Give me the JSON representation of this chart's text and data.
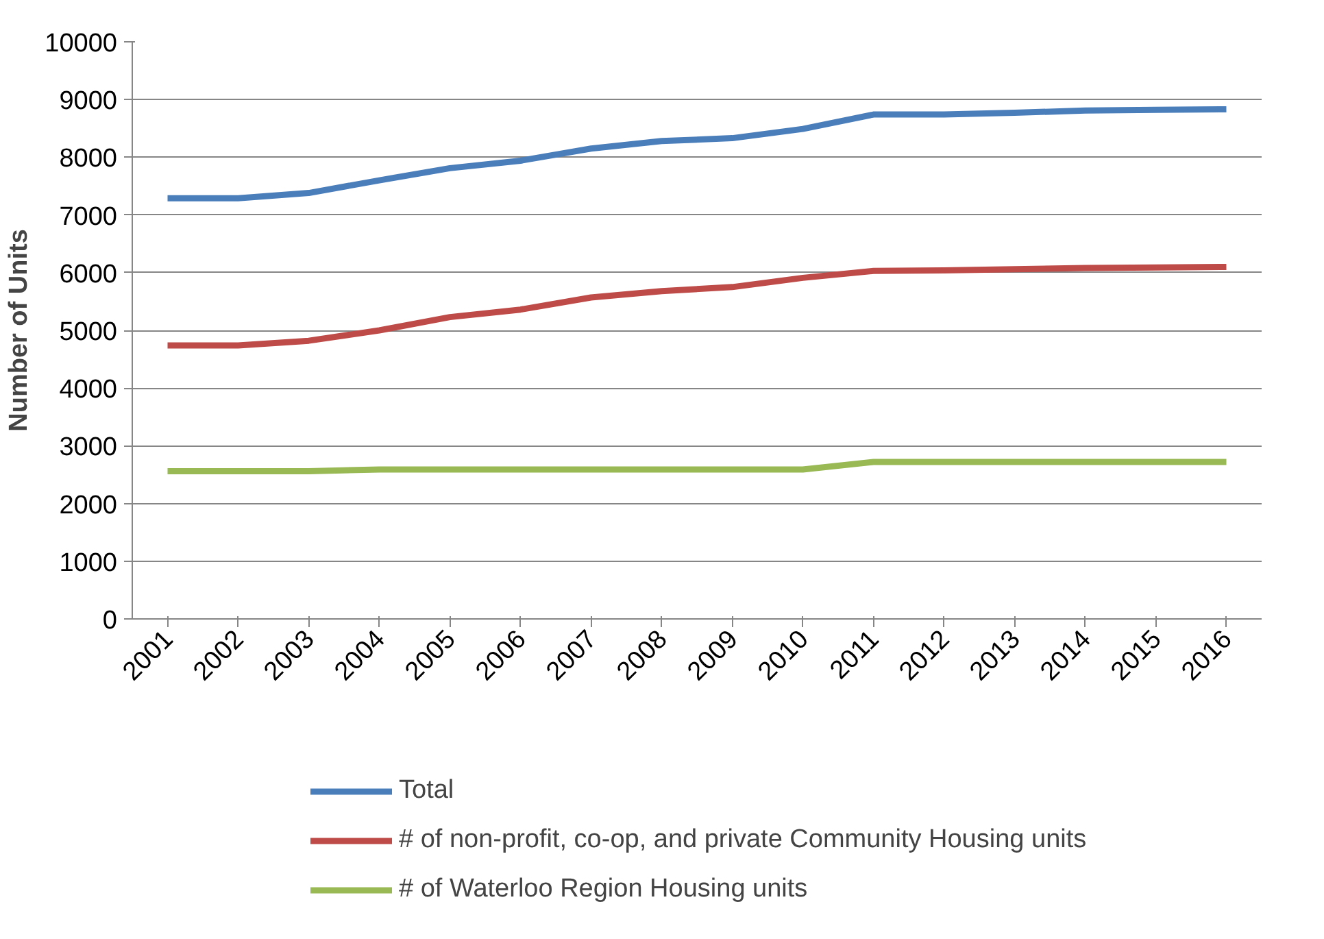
{
  "chart_data": {
    "type": "line",
    "ylabel": "Number of Units",
    "categories": [
      "2001",
      "2002",
      "2003",
      "2004",
      "2005",
      "2006",
      "2007",
      "2008",
      "2009",
      "2010",
      "2011",
      "2012",
      "2013",
      "2014",
      "2015",
      "2016"
    ],
    "series": [
      {
        "name": "Total",
        "color": "#4a7ebb",
        "values": [
          7290,
          7290,
          7380,
          7600,
          7810,
          7940,
          8150,
          8280,
          8330,
          8490,
          8740,
          8740,
          8770,
          8810,
          8820,
          8830
        ]
      },
      {
        "name": "# of non-profit, co-op, and private Community Housing units",
        "color": "#be4b48",
        "values": [
          4740,
          4740,
          4820,
          5000,
          5230,
          5360,
          5570,
          5680,
          5750,
          5910,
          6030,
          6040,
          6060,
          6080,
          6090,
          6100
        ]
      },
      {
        "name": "# of Waterloo Region Housing units",
        "color": "#98b954",
        "values": [
          2560,
          2560,
          2560,
          2590,
          2590,
          2590,
          2590,
          2590,
          2590,
          2590,
          2720,
          2720,
          2720,
          2720,
          2720,
          2720
        ]
      }
    ],
    "ylim": [
      0,
      10000
    ],
    "yticks": [
      0,
      1000,
      2000,
      3000,
      4000,
      5000,
      6000,
      7000,
      8000,
      9000,
      10000
    ],
    "grid": "y",
    "legend": "bottom",
    "marker": "none",
    "line_style": "solid"
  }
}
